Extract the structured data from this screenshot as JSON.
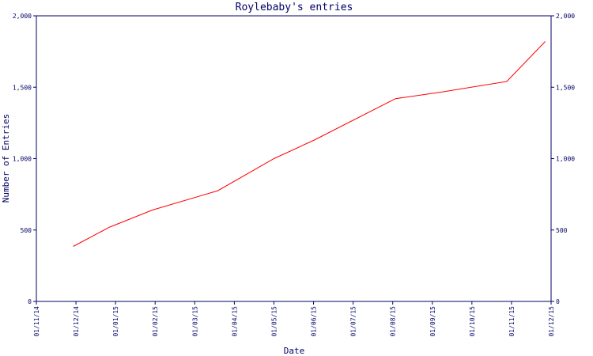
{
  "chart_data": {
    "type": "line",
    "title": "Roylebaby's entries",
    "xlabel": "Date",
    "ylabel": "Number of Entries",
    "ylim": [
      0,
      2000
    ],
    "y_ticks": [
      "0",
      "500",
      "1,000",
      "1,500",
      "2,000"
    ],
    "y_tick_values": [
      0,
      500,
      1000,
      1500,
      2000
    ],
    "x_ticks": [
      "01/11/14",
      "01/12/14",
      "01/01/15",
      "01/02/15",
      "01/03/15",
      "01/04/15",
      "01/05/15",
      "01/06/15",
      "01/07/15",
      "01/08/15",
      "01/09/15",
      "01/10/15",
      "01/11/15",
      "01/12/15"
    ],
    "x_tick_positions": [
      0,
      1,
      2,
      3,
      4,
      5,
      6,
      7,
      8,
      9,
      10,
      11,
      12,
      13
    ],
    "xlim": [
      0,
      13
    ],
    "series": [
      {
        "color": "#ff0000",
        "x": [
          0.93,
          1.85,
          2.93,
          4.58,
          6.0,
          7.02,
          9.07,
          10.2,
          11.88,
          12.85
        ],
        "y": [
          385,
          520,
          640,
          775,
          1000,
          1130,
          1420,
          1465,
          1540,
          1820
        ]
      }
    ],
    "grid": false,
    "right_axis_mirror": true
  }
}
